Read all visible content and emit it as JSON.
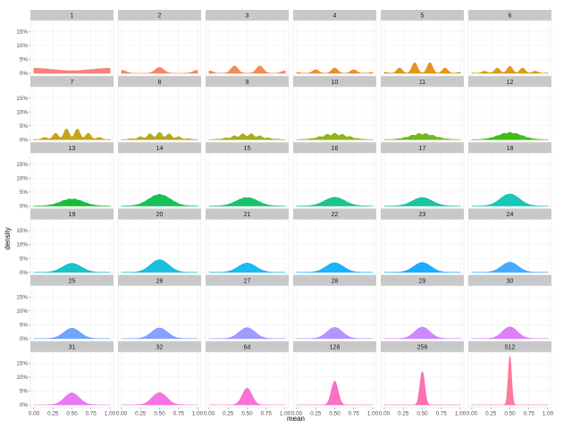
{
  "chart_data": {
    "type": "area",
    "subtype": "faceted density plot (small multiples)",
    "facet_by": "n",
    "xlabel": "mean",
    "ylabel": "density",
    "xlim": [
      0,
      1
    ],
    "ylim": [
      0,
      0.19
    ],
    "x_ticks": [
      0,
      0.25,
      0.5,
      0.75,
      1
    ],
    "x_tick_labels": [
      "0.00",
      "0.25",
      "0.50",
      "0.75",
      "1.00"
    ],
    "y_ticks": [
      0,
      0.05,
      0.1,
      0.15
    ],
    "y_tick_labels": [
      "0%",
      "5%",
      "10%",
      "15%"
    ],
    "grid": true,
    "legend": "none",
    "panels": [
      {
        "label": "1",
        "n": 1,
        "color": "#F8766D",
        "peak_density": 0.018
      },
      {
        "label": "2",
        "n": 2,
        "color": "#F37B59",
        "peak_density": 0.021
      },
      {
        "label": "3",
        "n": 3,
        "color": "#ED8141",
        "peak_density": 0.026
      },
      {
        "label": "4",
        "n": 4,
        "color": "#E7861B",
        "peak_density": 0.019
      },
      {
        "label": "5",
        "n": 5,
        "color": "#DF8B00",
        "peak_density": 0.038
      },
      {
        "label": "6",
        "n": 6,
        "color": "#D89000",
        "peak_density": 0.025
      },
      {
        "label": "7",
        "n": 7,
        "color": "#C09B00",
        "peak_density": 0.038
      },
      {
        "label": "8",
        "n": 8,
        "color": "#AFA100",
        "peak_density": 0.026
      },
      {
        "label": "9",
        "n": 9,
        "color": "#9CA700",
        "peak_density": 0.021
      },
      {
        "label": "10",
        "n": 10,
        "color": "#85AD00",
        "peak_density": 0.023
      },
      {
        "label": "11",
        "n": 11,
        "color": "#63B300",
        "peak_density": 0.022
      },
      {
        "label": "12",
        "n": 12,
        "color": "#2BB600",
        "peak_density": 0.026
      },
      {
        "label": "13",
        "n": 13,
        "color": "#00B81F",
        "peak_density": 0.025
      },
      {
        "label": "14",
        "n": 14,
        "color": "#00BB45",
        "peak_density": 0.042
      },
      {
        "label": "15",
        "n": 15,
        "color": "#00BD5C",
        "peak_density": 0.03
      },
      {
        "label": "16",
        "n": 16,
        "color": "#00BF7D",
        "peak_density": 0.031
      },
      {
        "label": "17",
        "n": 17,
        "color": "#00C094",
        "peak_density": 0.03
      },
      {
        "label": "18",
        "n": 18,
        "color": "#00C0AF",
        "peak_density": 0.043
      },
      {
        "label": "19",
        "n": 19,
        "color": "#00BDC4",
        "peak_density": 0.032
      },
      {
        "label": "20",
        "n": 20,
        "color": "#00BAD8",
        "peak_density": 0.045
      },
      {
        "label": "21",
        "n": 21,
        "color": "#00B4EF",
        "peak_density": 0.033
      },
      {
        "label": "22",
        "n": 22,
        "color": "#00ADFA",
        "peak_density": 0.034
      },
      {
        "label": "23",
        "n": 23,
        "color": "#00A5FF",
        "peak_density": 0.035
      },
      {
        "label": "24",
        "n": 24,
        "color": "#35A2FF",
        "peak_density": 0.036
      },
      {
        "label": "25",
        "n": 25,
        "color": "#619CFF",
        "peak_density": 0.037
      },
      {
        "label": "26",
        "n": 26,
        "color": "#7D96FF",
        "peak_density": 0.038
      },
      {
        "label": "27",
        "n": 27,
        "color": "#9590FF",
        "peak_density": 0.039
      },
      {
        "label": "28",
        "n": 28,
        "color": "#AC88FF",
        "peak_density": 0.04
      },
      {
        "label": "29",
        "n": 29,
        "color": "#C77CFF",
        "peak_density": 0.041
      },
      {
        "label": "30",
        "n": 30,
        "color": "#DB72FB",
        "peak_density": 0.042
      },
      {
        "label": "31",
        "n": 31,
        "color": "#E76BF3",
        "peak_density": 0.043
      },
      {
        "label": "32",
        "n": 32,
        "color": "#F464E4",
        "peak_density": 0.044
      },
      {
        "label": "64",
        "n": 64,
        "color": "#FA62D4",
        "peak_density": 0.06
      },
      {
        "label": "128",
        "n": 128,
        "color": "#FD61C1",
        "peak_density": 0.085
      },
      {
        "label": "256",
        "n": 256,
        "color": "#FE61AB",
        "peak_density": 0.12
      },
      {
        "label": "512",
        "n": 512,
        "color": "#FF6C91",
        "peak_density": 0.175
      }
    ]
  }
}
